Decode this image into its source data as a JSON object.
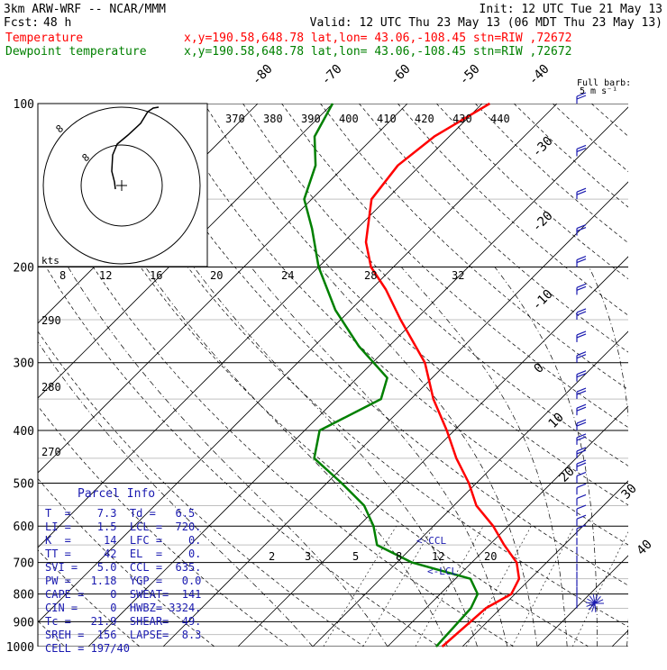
{
  "header": {
    "model": "3km ARW-WRF -- NCAR/MMM",
    "init": "Init: 12 UTC Tue 21 May 13",
    "fcst_label": "Fcst:",
    "fcst_value": "48 h",
    "valid": "Valid: 12 UTC Thu 23 May 13 (06 MDT Thu 23 May 13)",
    "temp_label": "Temperature",
    "dew_label": "Dewpoint temperature",
    "temp_info": "x,y=190.58,648.78   lat,lon= 43.06,-108.45   stn=RIW ,72672",
    "dew_info": "x,y=190.58,648.78   lat,lon= 43.06,-108.45   stn=RIW ,72672"
  },
  "barb_legend": {
    "line1": "Full barb:",
    "line2": "5 m s⁻¹"
  },
  "hodograph": {
    "label_kts": "kts",
    "ring_labels": [
      "8",
      "8"
    ]
  },
  "colors": {
    "temperature": "#ff0000",
    "dewpoint": "#008000",
    "wind": "#1a1ab0",
    "grid": "#000000"
  },
  "chart_data": {
    "type": "line",
    "title": "",
    "y_scale": "log-pressure",
    "ylim": [
      1000,
      100
    ],
    "pressure_ticks": [
      "100",
      "200",
      "300",
      "400",
      "500",
      "600",
      "700",
      "800",
      "900",
      "1000"
    ],
    "temperature_isotherm_labels": [
      "-80",
      "-70",
      "-60",
      "-50",
      "-40",
      "-30",
      "-20",
      "-10",
      "0",
      "10",
      "20",
      "30",
      "40"
    ],
    "theta_labels": [
      "370",
      "380",
      "390",
      "400",
      "410",
      "420",
      "430",
      "440"
    ],
    "theta_left_labels": [
      "290",
      "280",
      "270"
    ],
    "theta_e_labels": [
      "8",
      "12",
      "16",
      "20",
      "24",
      "28",
      "32"
    ],
    "mixing_ratio_labels": [
      "2",
      "3",
      "5",
      "8",
      "12",
      "20"
    ],
    "lcl_markers": [
      "<-CCL",
      "<-LCL"
    ],
    "series": [
      {
        "name": "Temperature",
        "points": [
          [
            1000,
            7.3
          ],
          [
            850,
            8
          ],
          [
            800,
            9.5
          ],
          [
            750,
            8.5
          ],
          [
            700,
            6
          ],
          [
            650,
            2
          ],
          [
            600,
            -2
          ],
          [
            550,
            -7
          ],
          [
            500,
            -11
          ],
          [
            450,
            -16
          ],
          [
            400,
            -21
          ],
          [
            350,
            -27
          ],
          [
            300,
            -33
          ],
          [
            250,
            -42
          ],
          [
            220,
            -48
          ],
          [
            200,
            -53
          ],
          [
            180,
            -57
          ],
          [
            150,
            -62
          ],
          [
            130,
            -63
          ],
          [
            115,
            -62
          ],
          [
            100,
            -59
          ]
        ]
      },
      {
        "name": "Dewpoint temperature",
        "points": [
          [
            1000,
            6.5
          ],
          [
            850,
            6
          ],
          [
            800,
            5
          ],
          [
            750,
            2
          ],
          [
            700,
            -8
          ],
          [
            650,
            -15
          ],
          [
            600,
            -18
          ],
          [
            550,
            -22
          ],
          [
            500,
            -28
          ],
          [
            450,
            -35
          ],
          [
            400,
            -38
          ],
          [
            350,
            -34
          ],
          [
            320,
            -36
          ],
          [
            280,
            -44
          ],
          [
            240,
            -52
          ],
          [
            200,
            -60
          ],
          [
            170,
            -66
          ],
          [
            150,
            -71
          ],
          [
            130,
            -74
          ],
          [
            115,
            -78
          ],
          [
            100,
            -80
          ]
        ]
      }
    ]
  },
  "parcel_info": {
    "title": "Parcel Info",
    "rows": [
      "T  =    7.3  Td =   6.5",
      "LI =    1.5  LCL =  720.",
      "K  =     14  LFC =    0.",
      "TT =     42  EL  =    0.",
      "SVI =   5.0  CCL =  635.",
      "PW =   1.18  YGP =   0.0",
      "CAPE =    0  SWEAT=  141",
      "CIN =     0  HWBZ= 3324.",
      "Tc =   21.9  SHEAR=  49.",
      "SREH =  156  LAPSE=  8.3",
      "CELL = 197/40"
    ]
  }
}
